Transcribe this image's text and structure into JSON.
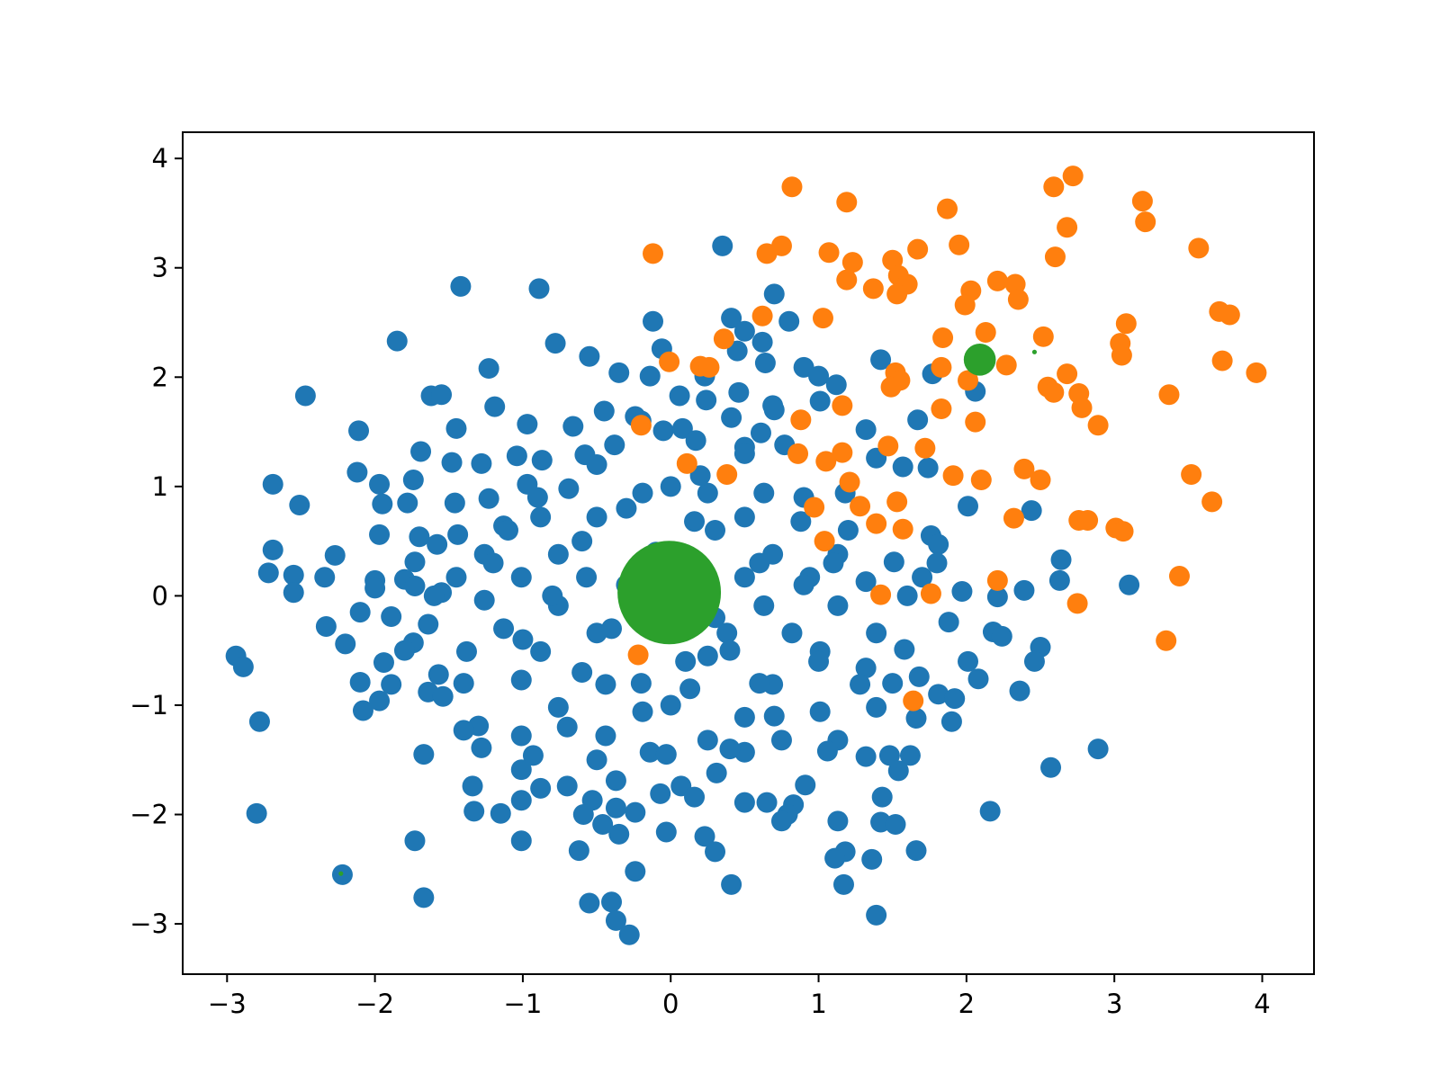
{
  "chart_data": {
    "type": "scatter",
    "xlim": [
      -3.3,
      4.35
    ],
    "ylim": [
      -3.46,
      4.24
    ],
    "xticks": [
      {
        "value": -3,
        "label": "−3"
      },
      {
        "value": -2,
        "label": "−2"
      },
      {
        "value": -1,
        "label": "−1"
      },
      0,
      1,
      2,
      3,
      4
    ],
    "yticks": [
      {
        "value": -3,
        "label": "−3"
      },
      {
        "value": -2,
        "label": "−2"
      },
      {
        "value": -1,
        "label": "−1"
      },
      0,
      1,
      2,
      3,
      4
    ],
    "grid": false,
    "series": [
      {
        "color": "#1f77b4",
        "size": 20,
        "x": [
          0.35,
          -1.42,
          -0.89,
          -1.85,
          -0.78,
          -0.12,
          0.41,
          0.7,
          0.8,
          0.5,
          0.62,
          -0.06,
          0.45,
          -0.55,
          -1.23,
          -0.35,
          -0.14,
          0.23,
          0.64,
          0.9,
          1.42,
          1.77,
          2.06,
          -2.47,
          -1.62,
          -1.55,
          0.46,
          1.0,
          1.12,
          -1.19,
          -0.97,
          -1.45,
          -2.11,
          -0.45,
          -0.24,
          0.06,
          0.24,
          0.41,
          0.69,
          1.01,
          1.67,
          -0.66,
          -0.05,
          0.08,
          0.61,
          1.32,
          -1.69,
          -1.48,
          -2.12,
          -2.69,
          -1.97,
          -1.74,
          -1.28,
          -1.04,
          -0.87,
          -0.58,
          -0.38,
          0.17,
          0.5,
          0.77,
          1.39,
          1.57,
          1.74,
          -2.51,
          -1.95,
          -1.78,
          -1.23,
          -1.46,
          -0.97,
          -0.69,
          -0.19,
          0.25,
          0.63,
          1.18,
          2.01,
          2.44,
          -1.97,
          -2.69,
          -1.7,
          -1.58,
          -1.44,
          -1.13,
          -0.88,
          -0.5,
          0.16,
          0.5,
          0.88,
          1.76,
          1.81,
          -2.27,
          -1.73,
          -1.26,
          -0.76,
          0.69,
          1.13,
          1.51,
          2.64,
          -2.72,
          -2.55,
          -2.34,
          -2.0,
          -1.8,
          -1.45,
          -1.01,
          -0.57,
          0.5,
          0.94,
          1.32,
          1.7,
          2.63,
          3.1,
          2.39,
          1.97,
          -2.55,
          -2.0,
          -1.73,
          -1.55,
          -1.26,
          -0.76,
          0.63,
          1.13,
          2.21,
          -2.1,
          -1.89,
          -2.33,
          -1.64,
          -1.13,
          -0.5,
          0.38,
          0.82,
          1.39,
          1.88,
          2.18,
          2.24,
          -2.2,
          -1.74,
          -1.38,
          -0.88,
          0.25,
          1.01,
          1.58,
          2.5,
          -2.94,
          -2.89,
          2.01,
          2.46,
          -1.94,
          1.32,
          -1.57,
          -1.01,
          -0.44,
          0.13,
          0.69,
          2.08,
          1.68,
          -2.1,
          -1.89,
          1.28,
          -1.64,
          -1.54,
          2.36,
          -1.97,
          -2.08,
          1.81,
          1.92,
          -0.76,
          -0.19,
          0.5,
          1.01,
          1.39,
          -2.78,
          1.9,
          1.66,
          -1.3,
          -1.4,
          -1.01,
          -0.44,
          0.25,
          0.75,
          1.13,
          -1.28,
          2.89,
          -1.67,
          1.48,
          1.62,
          1.32,
          -0.93,
          -0.14,
          -0.03,
          0.5,
          1.06,
          1.54,
          2.57,
          -1.01,
          0.31,
          -0.37,
          -1.34,
          -0.7,
          -0.88,
          0.91,
          0.07,
          -0.07,
          0.16,
          1.43,
          -1.01,
          -0.53,
          0.5,
          0.65,
          0.83,
          -0.37,
          -2.8,
          -1.33,
          -1.15,
          -0.24,
          2.16,
          -0.59,
          0.79,
          1.13,
          0.75,
          1.42,
          1.52,
          -0.46,
          -0.03,
          -0.35,
          0.23,
          -1.73,
          -1.01,
          -0.62,
          0.3,
          1.18,
          1.66,
          1.11,
          1.36,
          -0.24,
          -2.22,
          0.41,
          1.17,
          -1.67,
          -0.55,
          -0.4,
          1.39,
          -0.37,
          -0.28,
          -0.6,
          -0.3,
          0.3,
          0.6,
          -0.4,
          0.4,
          -0.8,
          0.9,
          -0.2,
          0.2,
          -1.0,
          1.0,
          -0.5,
          0.5,
          -1.2,
          1.2,
          0,
          0,
          -0.7,
          0.7,
          -1.4,
          1.5,
          -0.9,
          0.9,
          -0.1,
          0.3,
          -0.3,
          0.6,
          -0.6,
          1.1,
          -1.1,
          0.1,
          -1.6,
          1.6,
          -0.5,
          0.4,
          -1.8,
          1.8,
          -0.2,
          0.7
        ],
        "values": [
          3.2,
          2.83,
          2.81,
          2.33,
          2.31,
          2.51,
          2.54,
          2.76,
          2.51,
          2.42,
          2.32,
          2.26,
          2.24,
          2.19,
          2.08,
          2.04,
          2.01,
          2.01,
          2.13,
          2.09,
          2.16,
          2.03,
          1.87,
          1.83,
          1.83,
          1.84,
          1.86,
          2.01,
          1.93,
          1.73,
          1.57,
          1.53,
          1.51,
          1.69,
          1.64,
          1.83,
          1.79,
          1.63,
          1.74,
          1.78,
          1.61,
          1.55,
          1.51,
          1.53,
          1.49,
          1.52,
          1.32,
          1.22,
          1.13,
          1.02,
          1.02,
          1.06,
          1.21,
          1.28,
          1.24,
          1.29,
          1.38,
          1.42,
          1.36,
          1.38,
          1.26,
          1.18,
          1.17,
          0.83,
          0.84,
          0.85,
          0.89,
          0.85,
          1.02,
          0.98,
          0.94,
          0.94,
          0.94,
          0.94,
          0.82,
          0.78,
          0.56,
          0.42,
          0.54,
          0.47,
          0.56,
          0.64,
          0.72,
          0.72,
          0.68,
          0.72,
          0.68,
          0.55,
          0.47,
          0.37,
          0.31,
          0.38,
          0.38,
          0.38,
          0.38,
          0.31,
          0.33,
          0.21,
          0.19,
          0.17,
          0.14,
          0.15,
          0.17,
          0.17,
          0.17,
          0.17,
          0.17,
          0.13,
          0.17,
          0.14,
          0.1,
          0.05,
          0.04,
          0.03,
          0.07,
          0.09,
          0.03,
          -0.04,
          -0.09,
          -0.09,
          -0.09,
          -0.01,
          -0.15,
          -0.19,
          -0.28,
          -0.26,
          -0.3,
          -0.34,
          -0.34,
          -0.34,
          -0.34,
          -0.24,
          -0.33,
          -0.37,
          -0.44,
          -0.43,
          -0.51,
          -0.51,
          -0.55,
          -0.51,
          -0.49,
          -0.47,
          -0.55,
          -0.65,
          -0.6,
          -0.6,
          -0.61,
          -0.66,
          -0.72,
          -0.77,
          -0.81,
          -0.85,
          -0.81,
          -0.76,
          -0.74,
          -0.79,
          -0.81,
          -0.81,
          -0.88,
          -0.92,
          -0.87,
          -0.96,
          -1.05,
          -0.9,
          -0.94,
          -1.02,
          -1.06,
          -1.11,
          -1.06,
          -1.02,
          -1.15,
          -1.15,
          -1.12,
          -1.19,
          -1.23,
          -1.28,
          -1.28,
          -1.32,
          -1.32,
          -1.32,
          -1.39,
          -1.4,
          -1.45,
          -1.46,
          -1.46,
          -1.47,
          -1.46,
          -1.43,
          -1.45,
          -1.43,
          -1.42,
          -1.6,
          -1.57,
          -1.59,
          -1.62,
          -1.69,
          -1.74,
          -1.74,
          -1.76,
          -1.73,
          -1.74,
          -1.81,
          -1.84,
          -1.84,
          -1.87,
          -1.87,
          -1.89,
          -1.89,
          -1.91,
          -1.94,
          -1.99,
          -1.97,
          -1.99,
          -1.98,
          -1.97,
          -2.0,
          -2.0,
          -2.06,
          -2.06,
          -2.07,
          -2.09,
          -2.09,
          -2.16,
          -2.18,
          -2.2,
          -2.24,
          -2.24,
          -2.33,
          -2.34,
          -2.34,
          -2.33,
          -2.4,
          -2.41,
          -2.52,
          -2.55,
          -2.64,
          -2.64,
          -2.76,
          -2.81,
          -2.8,
          -2.92,
          -2.97,
          -3.1,
          0.5,
          0.8,
          0.6,
          0.3,
          -0.3,
          -0.5,
          0,
          0.1,
          -0.8,
          1.1,
          -0.4,
          -0.6,
          1.2,
          1.3,
          0.3,
          0.6,
          1.0,
          -1.0,
          -1.2,
          -1.1,
          -0.8,
          -0.8,
          0.9,
          0.9,
          0.4,
          -0.2,
          0.1,
          -0.8,
          -0.7,
          0.3,
          0.6,
          -0.6,
          0,
          0,
          -1.5,
          -1.4,
          -0.5,
          0.3,
          1.6,
          1.7
        ]
      },
      {
        "color": "#ff7f0e",
        "size": 20,
        "x": [
          -0.12,
          0.82,
          1.19,
          1.87,
          2.59,
          2.72,
          3.19,
          3.21,
          2.68,
          3.57,
          2.6,
          0.65,
          0.75,
          1.07,
          1.23,
          1.19,
          1.37,
          1.5,
          1.67,
          1.95,
          1.54,
          1.6,
          1.53,
          2.03,
          1.99,
          2.21,
          2.33,
          2.35,
          0.62,
          1.03,
          3.71,
          3.78,
          3.08,
          0.36,
          1.84,
          2.13,
          2.52,
          3.04,
          3.05,
          3.73,
          -0.01,
          0.2,
          0.26,
          1.83,
          2.27,
          3.96,
          1.52,
          1.55,
          1.49,
          2.01,
          2.68,
          2.55,
          2.59,
          2.76,
          3.37,
          1.16,
          1.83,
          2.78,
          0.88,
          2.06,
          -0.2,
          2.89,
          1.47,
          1.72,
          0.86,
          1.16,
          1.05,
          0.11,
          0.38,
          1.91,
          2.1,
          2.39,
          2.5,
          3.52,
          1.21,
          1.53,
          3.66,
          0.97,
          1.28,
          1.39,
          1.57,
          2.32,
          2.76,
          2.82,
          3.01,
          3.06,
          1.04,
          2.21,
          3.44,
          1.42,
          1.76,
          2.75,
          3.35,
          -0.22,
          1.64
        ],
        "values": [
          3.13,
          3.74,
          3.6,
          3.54,
          3.74,
          3.84,
          3.61,
          3.42,
          3.37,
          3.18,
          3.1,
          3.13,
          3.2,
          3.14,
          3.05,
          2.89,
          2.81,
          3.07,
          3.17,
          3.21,
          2.93,
          2.85,
          2.76,
          2.79,
          2.66,
          2.88,
          2.85,
          2.71,
          2.56,
          2.54,
          2.6,
          2.57,
          2.49,
          2.35,
          2.36,
          2.41,
          2.37,
          2.31,
          2.2,
          2.15,
          2.14,
          2.1,
          2.09,
          2.09,
          2.11,
          2.04,
          2.04,
          1.97,
          1.91,
          1.97,
          2.03,
          1.91,
          1.86,
          1.85,
          1.84,
          1.74,
          1.71,
          1.72,
          1.61,
          1.59,
          1.56,
          1.56,
          1.37,
          1.35,
          1.3,
          1.31,
          1.23,
          1.21,
          1.11,
          1.1,
          1.06,
          1.16,
          1.06,
          1.11,
          1.04,
          0.86,
          0.86,
          0.81,
          0.82,
          0.66,
          0.61,
          0.71,
          0.69,
          0.69,
          0.62,
          0.59,
          0.5,
          0.14,
          0.18,
          0.01,
          0.02,
          -0.07,
          -0.41,
          -0.54,
          -0.96
        ]
      },
      {
        "color": "#2ca02c",
        "x": [
          -0.01,
          2.09,
          2.46,
          -2.23
        ],
        "values": [
          0.03,
          2.16,
          2.23,
          -2.54
        ],
        "sizes": [
          500,
          48,
          1,
          1
        ]
      }
    ]
  }
}
